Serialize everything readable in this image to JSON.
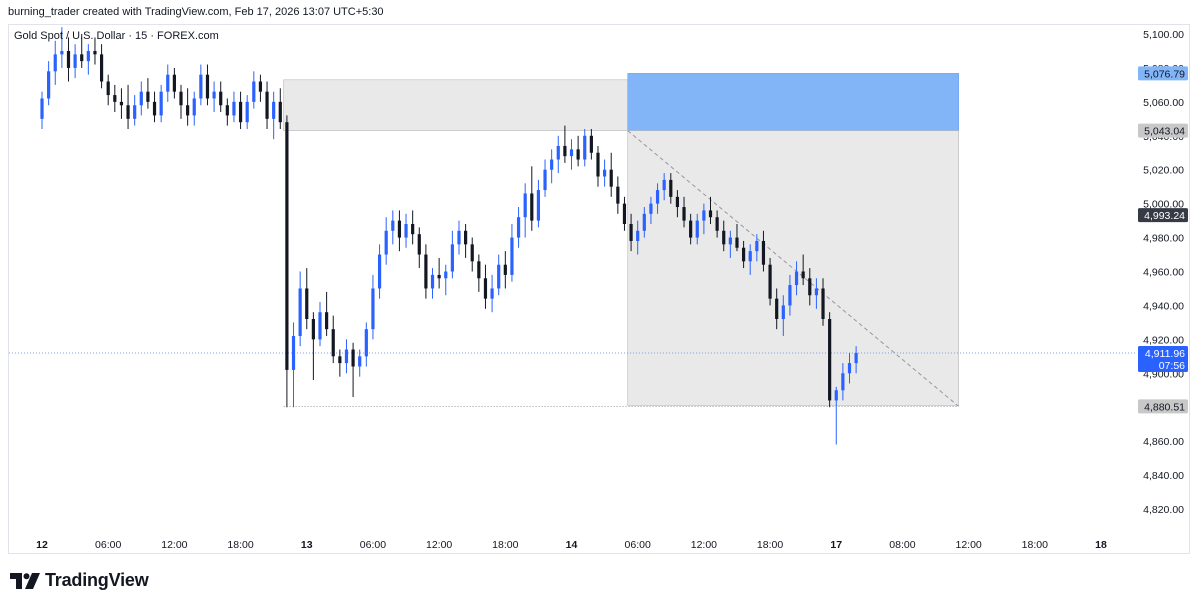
{
  "header": {
    "attribution": "burning_trader created with TradingView.com, Feb 17, 2026 13:07 UTC+5:30",
    "symbol": "Gold Spot / U.S. Dollar · 15 · FOREX.com"
  },
  "footer": {
    "logo_text": "TradingView"
  },
  "colors": {
    "candle_up": "#2962ff",
    "candle_down": "#131722",
    "zone_grey": "#e0e0e0",
    "target_blue": "#82b5f8",
    "last_price": "#2962ff",
    "label_grey": "#c8c8c8",
    "label_dark": "#363a45"
  },
  "chart_data": {
    "type": "candlestick",
    "title": "Gold Spot / U.S. Dollar · 15 · FOREX.com",
    "y_range": [
      4808,
      5112
    ],
    "x_range": [
      -5,
      166
    ],
    "y_ticks": [
      5100,
      5080,
      5060,
      5040,
      5020,
      5000,
      4980,
      4960,
      4940,
      4920,
      4900,
      4880,
      4860,
      4840,
      4820
    ],
    "y_tick_labels": [
      "5,100.00",
      "5,080.00",
      "5,060.00",
      "5,040.00",
      "5,020.00",
      "5,000.00",
      "4,980.00",
      "4,960.00",
      "4,940.00",
      "4,920.00",
      "4,900.00",
      "4,880.00",
      "4,860.00",
      "4,840.00",
      "4,820.00"
    ],
    "x_ticks": [
      {
        "t": 0,
        "label": "12",
        "bold": true
      },
      {
        "t": 10,
        "label": "06:00",
        "bold": false
      },
      {
        "t": 20,
        "label": "12:00",
        "bold": false
      },
      {
        "t": 30,
        "label": "18:00",
        "bold": false
      },
      {
        "t": 40,
        "label": "13",
        "bold": true
      },
      {
        "t": 50,
        "label": "06:00",
        "bold": false
      },
      {
        "t": 60,
        "label": "12:00",
        "bold": false
      },
      {
        "t": 70,
        "label": "18:00",
        "bold": false
      },
      {
        "t": 80,
        "label": "14",
        "bold": true
      },
      {
        "t": 90,
        "label": "06:00",
        "bold": false
      },
      {
        "t": 100,
        "label": "12:00",
        "bold": false
      },
      {
        "t": 110,
        "label": "18:00",
        "bold": false
      },
      {
        "t": 120,
        "label": "17",
        "bold": true
      },
      {
        "t": 130,
        "label": "08:00",
        "bold": false
      },
      {
        "t": 140,
        "label": "12:00",
        "bold": false
      },
      {
        "t": 150,
        "label": "18:00",
        "bold": false
      },
      {
        "t": 160,
        "label": "18",
        "bold": true
      }
    ],
    "price_labels": [
      {
        "value": 5076.79,
        "text": "5,076.79",
        "style": "blue"
      },
      {
        "value": 5043.04,
        "text": "5,043.04",
        "style": "grey"
      },
      {
        "value": 4993.24,
        "text": "4,993.24",
        "style": "dark"
      },
      {
        "value": 4911.96,
        "text": "4,911.96",
        "sub": "07:56",
        "style": "last"
      },
      {
        "value": 4880.51,
        "text": "4,880.51",
        "style": "grey"
      }
    ],
    "zones": [
      {
        "name": "supply-zone",
        "t0": 36.5,
        "t1": 88.5,
        "y0": 5043.04,
        "y1": 5073,
        "color": "grey"
      },
      {
        "name": "short-stop-zone",
        "t0": 88.5,
        "t1": 138.5,
        "y0": 5043.04,
        "y1": 5076.79,
        "color": "blue"
      },
      {
        "name": "short-target-zone",
        "t0": 88.5,
        "t1": 138.5,
        "y0": 4881,
        "y1": 5043.04,
        "color": "grey"
      }
    ],
    "lines": [
      {
        "name": "low-level-line",
        "t0": 36.5,
        "t1": 138.5,
        "value": 4880.51,
        "style": "dotted"
      },
      {
        "name": "projection-line",
        "t0": 88.5,
        "v0": 5043,
        "t1": 138.5,
        "v1": 4880.51,
        "style": "dashed"
      },
      {
        "name": "last-price-line",
        "value": 4911.96,
        "style": "dotted-blue"
      }
    ],
    "candles": [
      [
        5050,
        5066,
        5044,
        5062
      ],
      [
        5062,
        5084,
        5058,
        5078
      ],
      [
        5078,
        5096,
        5070,
        5088
      ],
      [
        5088,
        5104,
        5080,
        5090
      ],
      [
        5090,
        5098,
        5072,
        5080
      ],
      [
        5080,
        5094,
        5074,
        5088
      ],
      [
        5088,
        5100,
        5080,
        5084
      ],
      [
        5084,
        5094,
        5076,
        5090
      ],
      [
        5090,
        5098,
        5082,
        5088
      ],
      [
        5088,
        5094,
        5068,
        5072
      ],
      [
        5072,
        5076,
        5058,
        5064
      ],
      [
        5064,
        5070,
        5054,
        5060
      ],
      [
        5060,
        5068,
        5050,
        5058
      ],
      [
        5058,
        5070,
        5044,
        5050
      ],
      [
        5050,
        5064,
        5046,
        5058
      ],
      [
        5058,
        5072,
        5052,
        5066
      ],
      [
        5066,
        5074,
        5056,
        5060
      ],
      [
        5060,
        5066,
        5048,
        5052
      ],
      [
        5052,
        5070,
        5048,
        5066
      ],
      [
        5066,
        5082,
        5060,
        5076
      ],
      [
        5076,
        5080,
        5062,
        5066
      ],
      [
        5066,
        5070,
        5050,
        5058
      ],
      [
        5058,
        5068,
        5046,
        5052
      ],
      [
        5052,
        5066,
        5046,
        5062
      ],
      [
        5062,
        5082,
        5058,
        5076
      ],
      [
        5076,
        5082,
        5058,
        5062
      ],
      [
        5062,
        5072,
        5054,
        5066
      ],
      [
        5066,
        5072,
        5054,
        5058
      ],
      [
        5058,
        5062,
        5046,
        5052
      ],
      [
        5052,
        5066,
        5048,
        5060
      ],
      [
        5060,
        5066,
        5044,
        5048
      ],
      [
        5048,
        5064,
        5044,
        5060
      ],
      [
        5060,
        5078,
        5056,
        5072
      ],
      [
        5072,
        5076,
        5060,
        5066
      ],
      [
        5066,
        5072,
        5044,
        5050
      ],
      [
        5050,
        5066,
        5038,
        5060
      ],
      [
        5060,
        5068,
        5044,
        5048
      ],
      [
        5048,
        5052,
        4880,
        4902
      ],
      [
        4902,
        4930,
        4880,
        4922
      ],
      [
        4922,
        4960,
        4916,
        4950
      ],
      [
        4950,
        4962,
        4926,
        4932
      ],
      [
        4932,
        4936,
        4896,
        4920
      ],
      [
        4920,
        4942,
        4916,
        4936
      ],
      [
        4936,
        4948,
        4922,
        4926
      ],
      [
        4926,
        4934,
        4906,
        4910
      ],
      [
        4910,
        4914,
        4898,
        4906
      ],
      [
        4906,
        4920,
        4900,
        4914
      ],
      [
        4914,
        4918,
        4886,
        4904
      ],
      [
        4904,
        4914,
        4898,
        4910
      ],
      [
        4910,
        4930,
        4904,
        4926
      ],
      [
        4926,
        4958,
        4920,
        4950
      ],
      [
        4950,
        4976,
        4944,
        4970
      ],
      [
        4970,
        4992,
        4964,
        4984
      ],
      [
        4984,
        4996,
        4976,
        4990
      ],
      [
        4990,
        4996,
        4972,
        4980
      ],
      [
        4980,
        4994,
        4974,
        4988
      ],
      [
        4988,
        4996,
        4976,
        4982
      ],
      [
        4982,
        4986,
        4962,
        4970
      ],
      [
        4970,
        4976,
        4944,
        4950
      ],
      [
        4950,
        4962,
        4944,
        4958
      ],
      [
        4958,
        4968,
        4950,
        4956
      ],
      [
        4956,
        4964,
        4946,
        4960
      ],
      [
        4960,
        4984,
        4956,
        4976
      ],
      [
        4976,
        4990,
        4970,
        4984
      ],
      [
        4984,
        4988,
        4968,
        4976
      ],
      [
        4976,
        4980,
        4960,
        4966
      ],
      [
        4966,
        4970,
        4948,
        4956
      ],
      [
        4956,
        4964,
        4938,
        4944
      ],
      [
        4944,
        4958,
        4936,
        4950
      ],
      [
        4950,
        4970,
        4946,
        4964
      ],
      [
        4964,
        4972,
        4950,
        4958
      ],
      [
        4958,
        4988,
        4954,
        4980
      ],
      [
        4980,
        4998,
        4974,
        4992
      ],
      [
        4992,
        5012,
        4980,
        5006
      ],
      [
        5006,
        5022,
        4984,
        4990
      ],
      [
        4990,
        5014,
        4986,
        5008
      ],
      [
        5008,
        5026,
        5004,
        5020
      ],
      [
        5020,
        5032,
        5012,
        5026
      ],
      [
        5026,
        5040,
        5018,
        5034
      ],
      [
        5034,
        5046,
        5024,
        5028
      ],
      [
        5028,
        5038,
        5020,
        5032
      ],
      [
        5032,
        5040,
        5022,
        5026
      ],
      [
        5026,
        5044,
        5022,
        5040
      ],
      [
        5040,
        5044,
        5026,
        5030
      ],
      [
        5030,
        5034,
        5010,
        5016
      ],
      [
        5016,
        5026,
        5010,
        5020
      ],
      [
        5020,
        5030,
        5004,
        5010
      ],
      [
        5010,
        5016,
        4994,
        5000
      ],
      [
        5000,
        5004,
        4984,
        4988
      ],
      [
        4988,
        4994,
        4972,
        4978
      ],
      [
        4978,
        4990,
        4970,
        4984
      ],
      [
        4984,
        4998,
        4980,
        4994
      ],
      [
        4994,
        5004,
        4988,
        5000
      ],
      [
        5000,
        5012,
        4994,
        5008
      ],
      [
        5008,
        5018,
        5002,
        5014
      ],
      [
        5014,
        5018,
        5000,
        5004
      ],
      [
        5004,
        5008,
        4992,
        4998
      ],
      [
        4998,
        5004,
        4986,
        4990
      ],
      [
        4990,
        4994,
        4976,
        4980
      ],
      [
        4980,
        4994,
        4976,
        4990
      ],
      [
        4990,
        5000,
        4982,
        4996
      ],
      [
        4996,
        5004,
        4988,
        4992
      ],
      [
        4992,
        4996,
        4980,
        4984
      ],
      [
        4984,
        4990,
        4972,
        4976
      ],
      [
        4976,
        4984,
        4968,
        4980
      ],
      [
        4980,
        4988,
        4972,
        4974
      ],
      [
        4974,
        4978,
        4962,
        4966
      ],
      [
        4966,
        4976,
        4958,
        4972
      ],
      [
        4972,
        4982,
        4966,
        4978
      ],
      [
        4978,
        4984,
        4960,
        4964
      ],
      [
        4964,
        4968,
        4940,
        4944
      ],
      [
        4944,
        4950,
        4926,
        4932
      ],
      [
        4932,
        4946,
        4922,
        4940
      ],
      [
        4940,
        4958,
        4934,
        4952
      ],
      [
        4952,
        4966,
        4946,
        4960
      ],
      [
        4960,
        4970,
        4952,
        4956
      ],
      [
        4956,
        4962,
        4940,
        4946
      ],
      [
        4946,
        4956,
        4938,
        4950
      ],
      [
        4950,
        4956,
        4928,
        4932
      ],
      [
        4932,
        4936,
        4880,
        4884
      ],
      [
        4884,
        4892,
        4858,
        4890
      ],
      [
        4890,
        4906,
        4884,
        4900
      ],
      [
        4900,
        4912,
        4894,
        4906
      ],
      [
        4906,
        4916,
        4900,
        4912
      ]
    ]
  }
}
